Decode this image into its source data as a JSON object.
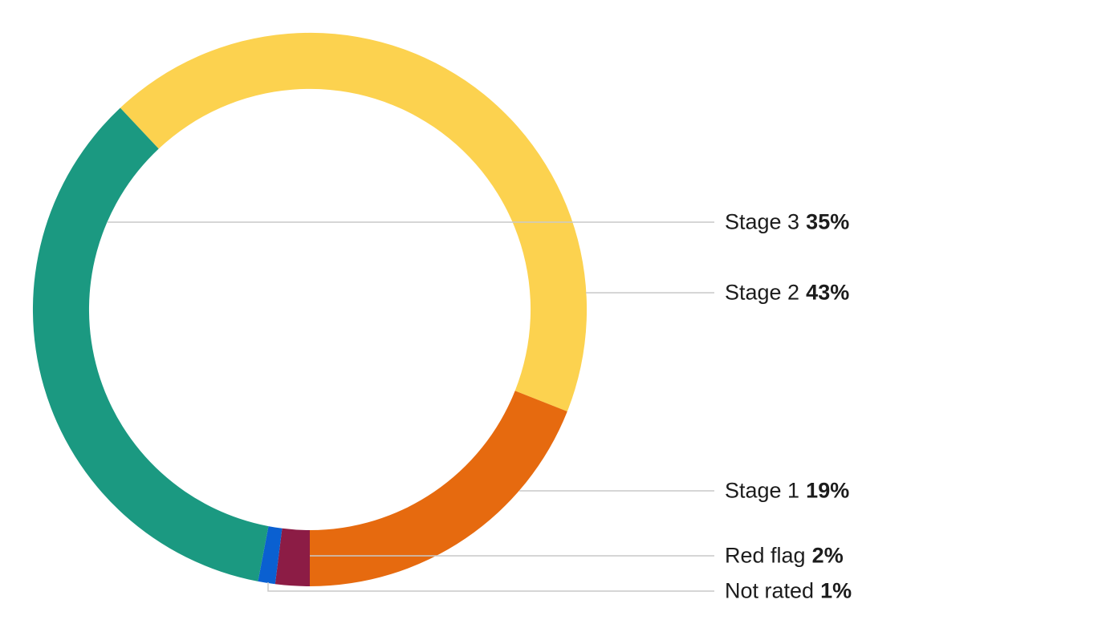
{
  "chart_data": {
    "type": "pie",
    "variant": "donut",
    "title": "",
    "direction": "clockwise",
    "start_angle_deg": -43.2,
    "legend_position": "right-callouts",
    "segments": [
      {
        "label": "Stage 2",
        "value": 43,
        "color": "#FCD24F"
      },
      {
        "label": "Stage 1",
        "value": 19,
        "color": "#E66A0F"
      },
      {
        "label": "Red flag",
        "value": 2,
        "color": "#8C1C45"
      },
      {
        "label": "Not rated",
        "value": 1,
        "color": "#0A60D1"
      },
      {
        "label": "Stage 3",
        "value": 35,
        "color": "#1B9981"
      }
    ]
  },
  "callouts": [
    {
      "label": "Stage 3",
      "value_text": "35%"
    },
    {
      "label": "Stage 2",
      "value_text": "43%"
    },
    {
      "label": "Stage 1",
      "value_text": "19%"
    },
    {
      "label": "Red flag",
      "value_text": "2%"
    },
    {
      "label": "Not rated",
      "value_text": "1%"
    }
  ],
  "styles": {
    "background": "#FFFFFF",
    "leader_line_color": "#C9C9C9",
    "text_color": "#1C1C1C"
  }
}
